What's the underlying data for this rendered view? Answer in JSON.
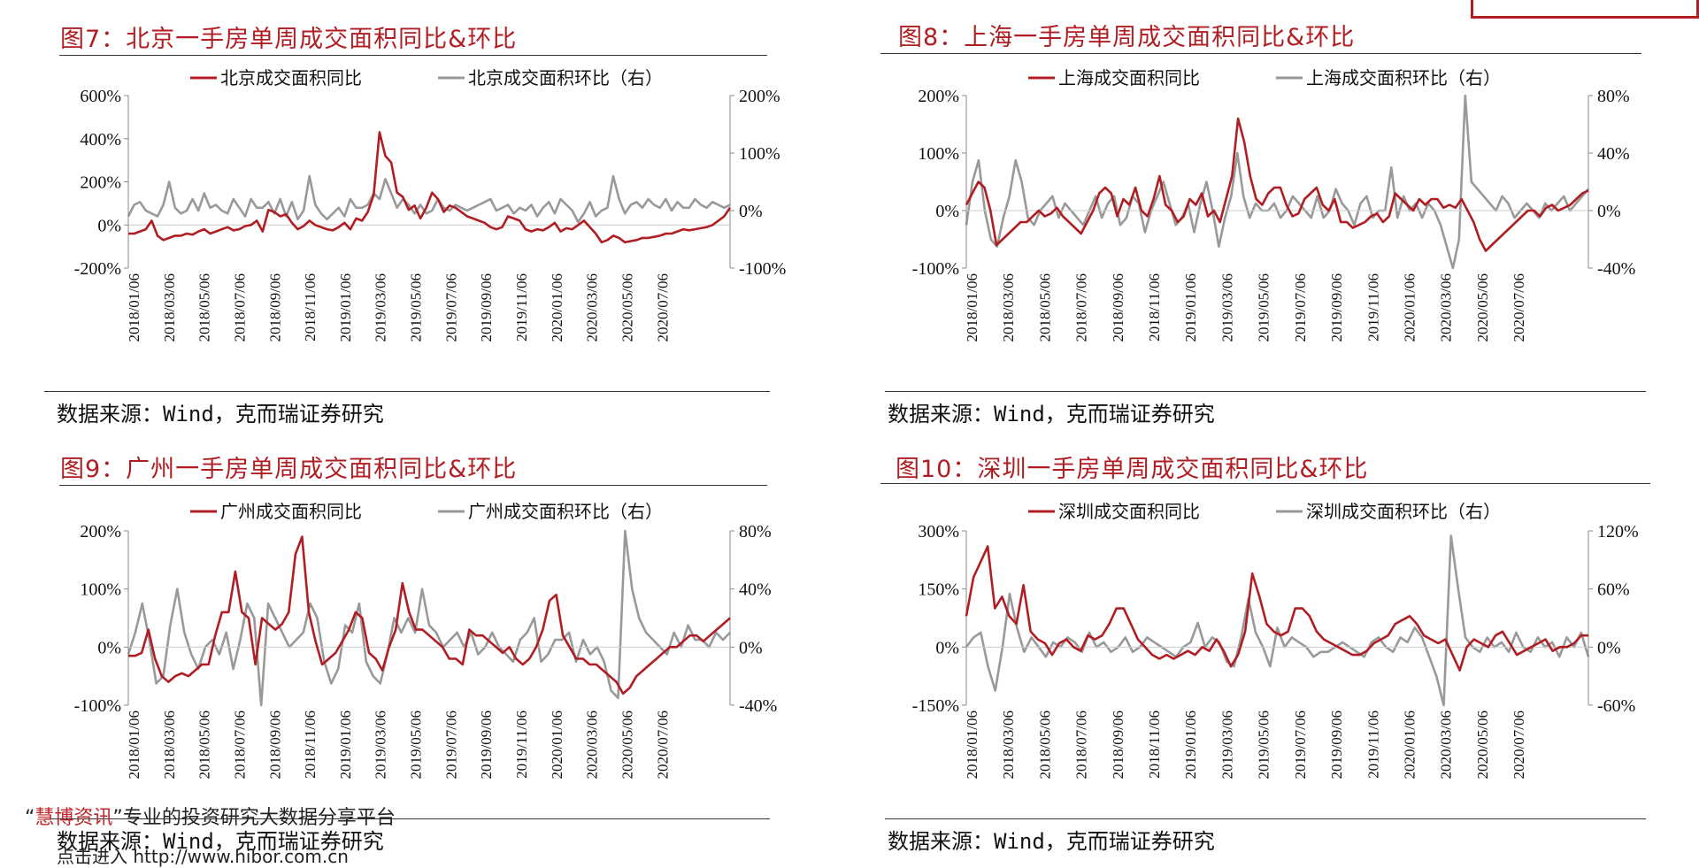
{
  "header_box": "",
  "watermark": {
    "brand": "慧博资讯",
    "slogan": "专业的投资研究大数据分享平台",
    "link_prefix": "点击进入",
    "url": "http://www.hibor.com.cn"
  },
  "charts": [
    {
      "title": "图7：北京一手房单周成交面积同比&环比",
      "source": "数据来源：Wind，克而瑞证券研究",
      "chart_data": {
        "type": "line",
        "legend": [
          "北京成交面积同比",
          "北京成交面积环比（右）"
        ],
        "left_ticks": [
          "600%",
          "400%",
          "200%",
          "0%",
          "-200%"
        ],
        "right_ticks": [
          "200%",
          "100%",
          "0%",
          "-100%"
        ],
        "ylim_left": [
          -200,
          600
        ],
        "ylim_right": [
          -100,
          200
        ],
        "x_ticks": [
          "2018/01/06",
          "2018/03/06",
          "2018/05/06",
          "2018/07/06",
          "2018/09/06",
          "2018/11/06",
          "2019/01/06",
          "2019/03/06",
          "2019/05/06",
          "2019/07/06",
          "2019/09/06",
          "2019/11/06",
          "2020/01/06",
          "2020/03/06",
          "2020/05/06",
          "2020/07/06"
        ],
        "series": [
          {
            "name": "北京成交面积同比",
            "axis": "left",
            "color": "#b01e23",
            "values": [
              -40,
              -40,
              -30,
              -20,
              20,
              -50,
              -70,
              -60,
              -50,
              -50,
              -40,
              -45,
              -30,
              -20,
              -40,
              -30,
              -20,
              -10,
              -25,
              -20,
              -5,
              0,
              20,
              -30,
              70,
              60,
              40,
              50,
              10,
              -20,
              -5,
              20,
              0,
              -10,
              -20,
              -25,
              -10,
              10,
              -20,
              30,
              20,
              60,
              140,
              430,
              320,
              290,
              150,
              130,
              70,
              90,
              30,
              80,
              150,
              120,
              60,
              90,
              80,
              60,
              40,
              30,
              20,
              10,
              -10,
              -20,
              -10,
              40,
              30,
              20,
              -20,
              -30,
              -20,
              -25,
              -10,
              10,
              -30,
              -15,
              -20,
              0,
              20,
              -10,
              -40,
              -80,
              -70,
              -50,
              -60,
              -80,
              -75,
              -70,
              -60,
              -60,
              -55,
              -50,
              -40,
              -40,
              -30,
              -20,
              -25,
              -20,
              -15,
              -10,
              0,
              20,
              40,
              80
            ]
          },
          {
            "name": "北京成交面积环比（右）",
            "axis": "right",
            "color": "#999999",
            "values": [
              -10,
              10,
              15,
              0,
              -5,
              -10,
              10,
              50,
              5,
              -5,
              0,
              20,
              0,
              30,
              5,
              10,
              0,
              -5,
              20,
              5,
              -10,
              20,
              5,
              5,
              15,
              -5,
              20,
              -10,
              15,
              -15,
              0,
              60,
              10,
              -5,
              -15,
              -5,
              5,
              -10,
              20,
              5,
              5,
              10,
              30,
              20,
              55,
              30,
              5,
              20,
              10,
              -5,
              10,
              -5,
              0,
              20,
              5,
              0,
              10,
              5,
              0,
              5,
              10,
              15,
              20,
              0,
              5,
              10,
              -5,
              5,
              0,
              10,
              -10,
              5,
              15,
              -5,
              20,
              10,
              0,
              -20,
              -5,
              15,
              -10,
              0,
              5,
              60,
              20,
              -5,
              10,
              15,
              5,
              20,
              10,
              5,
              20,
              0,
              15,
              5,
              5,
              20,
              10,
              5,
              15,
              10,
              5,
              10
            ]
          }
        ]
      }
    },
    {
      "title": "图8：上海一手房单周成交面积同比&环比",
      "source": "数据来源：Wind，克而瑞证券研究",
      "chart_data": {
        "type": "line",
        "legend": [
          "上海成交面积同比",
          "上海成交面积环比（右）"
        ],
        "left_ticks": [
          "200%",
          "100%",
          "0%",
          "-100%"
        ],
        "right_ticks": [
          "80%",
          "40%",
          "0%",
          "-40%"
        ],
        "ylim_left": [
          -100,
          200
        ],
        "ylim_right": [
          -40,
          80
        ],
        "x_ticks": [
          "2018/01/06",
          "2018/03/06",
          "2018/05/06",
          "2018/07/06",
          "2018/09/06",
          "2018/11/06",
          "2019/01/06",
          "2019/03/06",
          "2019/05/06",
          "2019/07/06",
          "2019/09/06",
          "2019/11/06",
          "2020/01/06",
          "2020/03/06",
          "2020/05/06",
          "2020/07/06"
        ],
        "series": [
          {
            "name": "上海成交面积同比",
            "axis": "left",
            "color": "#b01e23",
            "values": [
              10,
              30,
              50,
              40,
              0,
              -60,
              -50,
              -40,
              -30,
              -20,
              -20,
              -10,
              0,
              -10,
              -5,
              5,
              -10,
              -20,
              -30,
              -40,
              -20,
              0,
              30,
              40,
              30,
              -10,
              20,
              10,
              40,
              0,
              -10,
              20,
              60,
              10,
              0,
              -20,
              -10,
              20,
              10,
              30,
              -10,
              0,
              -20,
              20,
              60,
              160,
              120,
              60,
              20,
              10,
              30,
              40,
              40,
              10,
              -10,
              -5,
              20,
              30,
              40,
              10,
              0,
              20,
              -20,
              -20,
              -30,
              -25,
              -20,
              -10,
              -5,
              -20,
              -10,
              30,
              20,
              10,
              0,
              20,
              10,
              20,
              20,
              5,
              10,
              5,
              20,
              0,
              -20,
              -50,
              -70,
              -60,
              -50,
              -40,
              -30,
              -20,
              -10,
              0,
              0,
              -10,
              5,
              10,
              0,
              5,
              10,
              20,
              30,
              35
            ]
          },
          {
            "name": "上海成交面积环比（右）",
            "axis": "right",
            "color": "#999999",
            "values": [
              -10,
              20,
              35,
              0,
              -20,
              -25,
              -5,
              10,
              35,
              20,
              -5,
              -10,
              0,
              5,
              10,
              -5,
              5,
              0,
              -5,
              -10,
              0,
              10,
              -5,
              5,
              10,
              -10,
              -5,
              10,
              5,
              -15,
              0,
              10,
              20,
              5,
              -10,
              -5,
              5,
              -15,
              5,
              20,
              0,
              -25,
              -5,
              10,
              40,
              10,
              -5,
              5,
              0,
              0,
              5,
              -5,
              0,
              10,
              5,
              0,
              -5,
              10,
              -5,
              0,
              15,
              5,
              0,
              -10,
              5,
              10,
              -5,
              0,
              0,
              30,
              -5,
              10,
              0,
              5,
              -5,
              5,
              0,
              -10,
              -25,
              -40,
              -20,
              80,
              20,
              15,
              10,
              5,
              0,
              10,
              5,
              -5,
              0,
              5,
              0,
              -5,
              5,
              0,
              5,
              10,
              0,
              5,
              10,
              15
            ]
          }
        ]
      }
    },
    {
      "title": "图9：广州一手房单周成交面积同比&环比",
      "source": "数据来源：Wind，克而瑞证券研究",
      "chart_data": {
        "type": "line",
        "legend": [
          "广州成交面积同比",
          "广州成交面积环比（右）"
        ],
        "left_ticks": [
          "200%",
          "100%",
          "0%",
          "-100%"
        ],
        "right_ticks": [
          "80%",
          "40%",
          "0%",
          "-40%"
        ],
        "ylim_left": [
          -100,
          200
        ],
        "ylim_right": [
          -40,
          80
        ],
        "x_ticks": [
          "2018/01/06",
          "2018/03/06",
          "2018/05/06",
          "2018/07/06",
          "2018/09/06",
          "2018/11/06",
          "2019/01/06",
          "2019/03/06",
          "2019/05/06",
          "2019/07/06",
          "2019/09/06",
          "2019/11/06",
          "2020/01/06",
          "2020/03/06",
          "2020/05/06",
          "2020/07/06"
        ],
        "series": [
          {
            "name": "广州成交面积同比",
            "axis": "left",
            "color": "#b01e23",
            "values": [
              -15,
              -15,
              -10,
              30,
              -20,
              -50,
              -60,
              -50,
              -45,
              -50,
              -40,
              -30,
              -30,
              20,
              60,
              60,
              130,
              60,
              50,
              -30,
              50,
              40,
              30,
              40,
              60,
              160,
              190,
              60,
              10,
              -30,
              -20,
              -10,
              10,
              30,
              60,
              50,
              -10,
              -20,
              -40,
              0,
              30,
              110,
              60,
              30,
              30,
              20,
              10,
              0,
              -20,
              -20,
              -30,
              30,
              20,
              20,
              10,
              0,
              -10,
              0,
              -20,
              -30,
              -20,
              0,
              30,
              80,
              90,
              20,
              0,
              -20,
              -20,
              -30,
              -30,
              -40,
              -50,
              -60,
              -80,
              -70,
              -50,
              -40,
              -30,
              -20,
              -10,
              0,
              0,
              10,
              20,
              20,
              10,
              20,
              30,
              40,
              50
            ]
          },
          {
            "name": "广州成交面积环比（右）",
            "axis": "right",
            "color": "#999999",
            "values": [
              -5,
              10,
              30,
              5,
              -25,
              -20,
              15,
              40,
              10,
              -5,
              -15,
              0,
              5,
              -5,
              10,
              -15,
              5,
              30,
              20,
              -40,
              30,
              20,
              10,
              0,
              5,
              10,
              30,
              20,
              -10,
              -25,
              -15,
              15,
              10,
              30,
              -10,
              -20,
              -25,
              -5,
              20,
              10,
              20,
              10,
              40,
              15,
              10,
              0,
              5,
              10,
              0,
              10,
              -5,
              0,
              10,
              0,
              -5,
              -10,
              5,
              10,
              20,
              -10,
              -5,
              5,
              5,
              10,
              -10,
              5,
              -5,
              0,
              -10,
              -30,
              -35,
              80,
              40,
              20,
              10,
              5,
              0,
              -5,
              10,
              0,
              15,
              5,
              5,
              0,
              10,
              5,
              10
            ]
          }
        ]
      }
    },
    {
      "title": "图10：深圳一手房单周成交面积同比&环比",
      "source": "数据来源：Wind，克而瑞证券研究",
      "chart_data": {
        "type": "line",
        "legend": [
          "深圳成交面积同比",
          "深圳成交面积环比（右）"
        ],
        "left_ticks": [
          "300%",
          "150%",
          "0%",
          "-150%"
        ],
        "right_ticks": [
          "120%",
          "60%",
          "0%",
          "-60%"
        ],
        "ylim_left": [
          -150,
          300
        ],
        "ylim_right": [
          -60,
          120
        ],
        "x_ticks": [
          "2018/01/06",
          "2018/03/06",
          "2018/05/06",
          "2018/07/06",
          "2018/09/06",
          "2018/11/06",
          "2019/01/06",
          "2019/03/06",
          "2019/05/06",
          "2019/07/06",
          "2019/09/06",
          "2019/11/06",
          "2020/01/06",
          "2020/03/06",
          "2020/05/06",
          "2020/07/06"
        ],
        "series": [
          {
            "name": "深圳成交面积同比",
            "axis": "left",
            "color": "#b01e23",
            "values": [
              80,
              180,
              220,
              260,
              100,
              130,
              80,
              60,
              160,
              40,
              20,
              10,
              -20,
              10,
              20,
              0,
              -10,
              30,
              20,
              30,
              60,
              100,
              100,
              60,
              20,
              0,
              -20,
              -30,
              -20,
              -30,
              -20,
              -10,
              -20,
              0,
              -10,
              20,
              -10,
              -50,
              -20,
              40,
              190,
              130,
              60,
              40,
              30,
              40,
              100,
              100,
              80,
              40,
              20,
              10,
              0,
              -10,
              -20,
              -20,
              -10,
              10,
              20,
              30,
              60,
              70,
              80,
              60,
              30,
              20,
              10,
              20,
              -20,
              -60,
              0,
              20,
              10,
              0,
              30,
              40,
              10,
              -20,
              -10,
              0,
              10,
              20,
              -10,
              0,
              0,
              10,
              30,
              30
            ]
          },
          {
            "name": "深圳成交面积环比（右）",
            "axis": "right",
            "color": "#999999",
            "values": [
              0,
              10,
              15,
              -20,
              -45,
              0,
              55,
              20,
              -5,
              10,
              0,
              -10,
              5,
              0,
              10,
              5,
              -5,
              15,
              0,
              5,
              -5,
              0,
              10,
              -5,
              0,
              10,
              5,
              0,
              -5,
              -10,
              0,
              5,
              25,
              0,
              10,
              5,
              -15,
              -20,
              10,
              50,
              15,
              0,
              -20,
              20,
              0,
              10,
              5,
              0,
              -10,
              -5,
              -5,
              0,
              5,
              0,
              -5,
              -10,
              5,
              10,
              0,
              -5,
              10,
              5,
              20,
              10,
              -10,
              -30,
              -60,
              115,
              60,
              10,
              0,
              -5,
              10,
              0,
              5,
              -5,
              15,
              0,
              -5,
              10,
              0,
              5,
              -10,
              10,
              0,
              15,
              -10
            ]
          }
        ]
      }
    }
  ]
}
